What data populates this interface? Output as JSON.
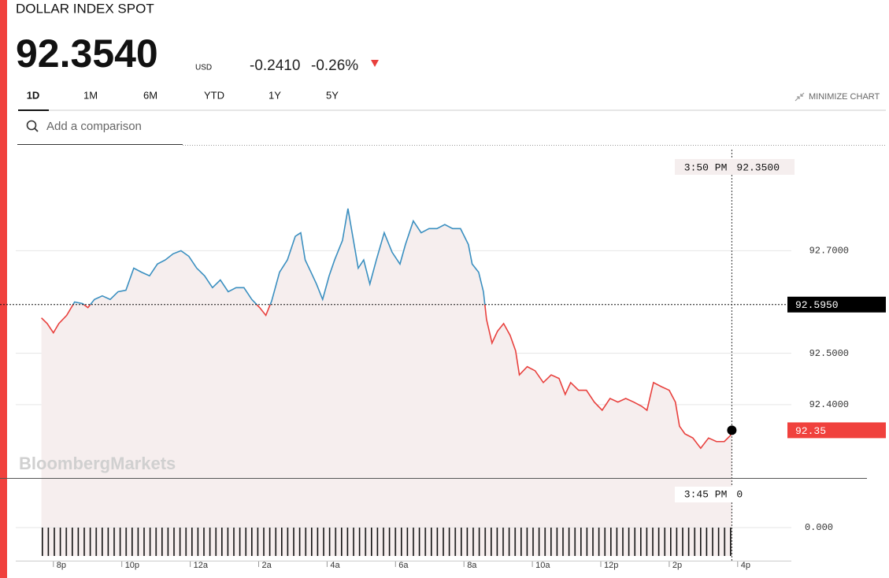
{
  "header": {
    "title": "DOLLAR INDEX SPOT",
    "price": "92.3540",
    "currency": "USD",
    "change": "-0.2410",
    "change_pct": "-0.26%"
  },
  "tabs": [
    "1D",
    "1M",
    "6M",
    "YTD",
    "1Y",
    "5Y"
  ],
  "minimize": "MINIMIZE CHART",
  "search_placeholder": "Add a comparison",
  "watermark": "BloombergMarkets",
  "chart_data": {
    "type": "line",
    "x": [
      19.65,
      19.82,
      20.0,
      20.16,
      20.39,
      20.62,
      20.85,
      21.01,
      21.2,
      21.43,
      21.66,
      21.89,
      22.12,
      22.35,
      22.58,
      22.81,
      23.04,
      23.27,
      23.5,
      23.73,
      23.96,
      24.19,
      24.42,
      24.65,
      24.88,
      25.11,
      25.34,
      25.57,
      25.8,
      26.03,
      26.21,
      26.38,
      26.61,
      26.84,
      27.07,
      27.23,
      27.36,
      27.53,
      27.69,
      27.87,
      28.06,
      28.22,
      28.45,
      28.61,
      28.75,
      28.91,
      29.07,
      29.25,
      29.44,
      29.67,
      29.9,
      30.13,
      30.29,
      30.52,
      30.75,
      30.98,
      31.21,
      31.44,
      31.67,
      31.9,
      32.13,
      32.24,
      32.43,
      32.57,
      32.66,
      32.82,
      32.98,
      33.16,
      33.35,
      33.51,
      33.62,
      33.85,
      34.08,
      34.32,
      34.55,
      34.78,
      34.96,
      35.12,
      35.35,
      35.58,
      35.81,
      36.04,
      36.27,
      36.5,
      36.73,
      36.96,
      37.19,
      37.35,
      37.54,
      37.77,
      38.0,
      38.18,
      38.3,
      38.46,
      38.69,
      38.92,
      39.15,
      39.38,
      39.61,
      39.79,
      39.83
    ],
    "values": [
      92.569,
      92.558,
      92.54,
      92.558,
      92.574,
      92.6,
      92.597,
      92.589,
      92.605,
      92.612,
      92.605,
      92.62,
      92.623,
      92.666,
      92.658,
      92.651,
      92.674,
      92.682,
      92.694,
      92.7,
      92.689,
      92.666,
      92.651,
      92.628,
      92.643,
      92.62,
      92.628,
      92.628,
      92.605,
      92.589,
      92.574,
      92.602,
      92.658,
      92.682,
      92.728,
      92.735,
      92.682,
      92.658,
      92.635,
      92.605,
      92.651,
      92.682,
      92.72,
      92.782,
      92.728,
      92.666,
      92.682,
      92.635,
      92.682,
      92.735,
      92.697,
      92.674,
      92.712,
      92.758,
      92.735,
      92.743,
      92.743,
      92.751,
      92.743,
      92.743,
      92.712,
      92.674,
      92.658,
      92.62,
      92.566,
      92.52,
      92.543,
      92.558,
      92.535,
      92.505,
      92.458,
      92.474,
      92.466,
      92.443,
      92.458,
      92.451,
      92.42,
      92.443,
      92.428,
      92.428,
      92.405,
      92.389,
      92.412,
      92.405,
      92.412,
      92.405,
      92.397,
      92.389,
      92.443,
      92.435,
      92.428,
      92.405,
      92.358,
      92.343,
      92.335,
      92.315,
      92.335,
      92.328,
      92.328,
      92.34,
      92.35
    ],
    "colors": {
      "above": "#3a8fc0",
      "below": "#e8403d",
      "area": "#f6eeee"
    },
    "xlim": [
      18.9,
      41.57
    ],
    "xticks": [
      {
        "value": 20,
        "label": "8p"
      },
      {
        "value": 22,
        "label": "10p"
      },
      {
        "value": 24,
        "label": "12a"
      },
      {
        "value": 26,
        "label": "2a"
      },
      {
        "value": 28,
        "label": "4a"
      },
      {
        "value": 30,
        "label": "6a"
      },
      {
        "value": 32,
        "label": "8a"
      },
      {
        "value": 34,
        "label": "10a"
      },
      {
        "value": 36,
        "label": "12p"
      },
      {
        "value": 38,
        "label": "2p"
      },
      {
        "value": 40,
        "label": "4p"
      }
    ],
    "ylim": [
      92.257,
      92.897
    ],
    "yticks": [
      {
        "value": 92.4,
        "label": "92.4000"
      },
      {
        "value": 92.5,
        "label": "92.5000"
      },
      {
        "value": 92.7,
        "label": "92.7000"
      }
    ],
    "grid": true,
    "prev_close": {
      "value": 92.595,
      "label": "92.5950"
    },
    "last": {
      "value": 92.35,
      "label": "92.35"
    },
    "crosshair_time": "3:50 PM",
    "crosshair_value": "92.3500",
    "volume": {
      "crosshair_time": "3:45 PM",
      "crosshair_value": "0",
      "yticks": [
        {
          "value": 0,
          "label": "0.000"
        }
      ]
    }
  }
}
